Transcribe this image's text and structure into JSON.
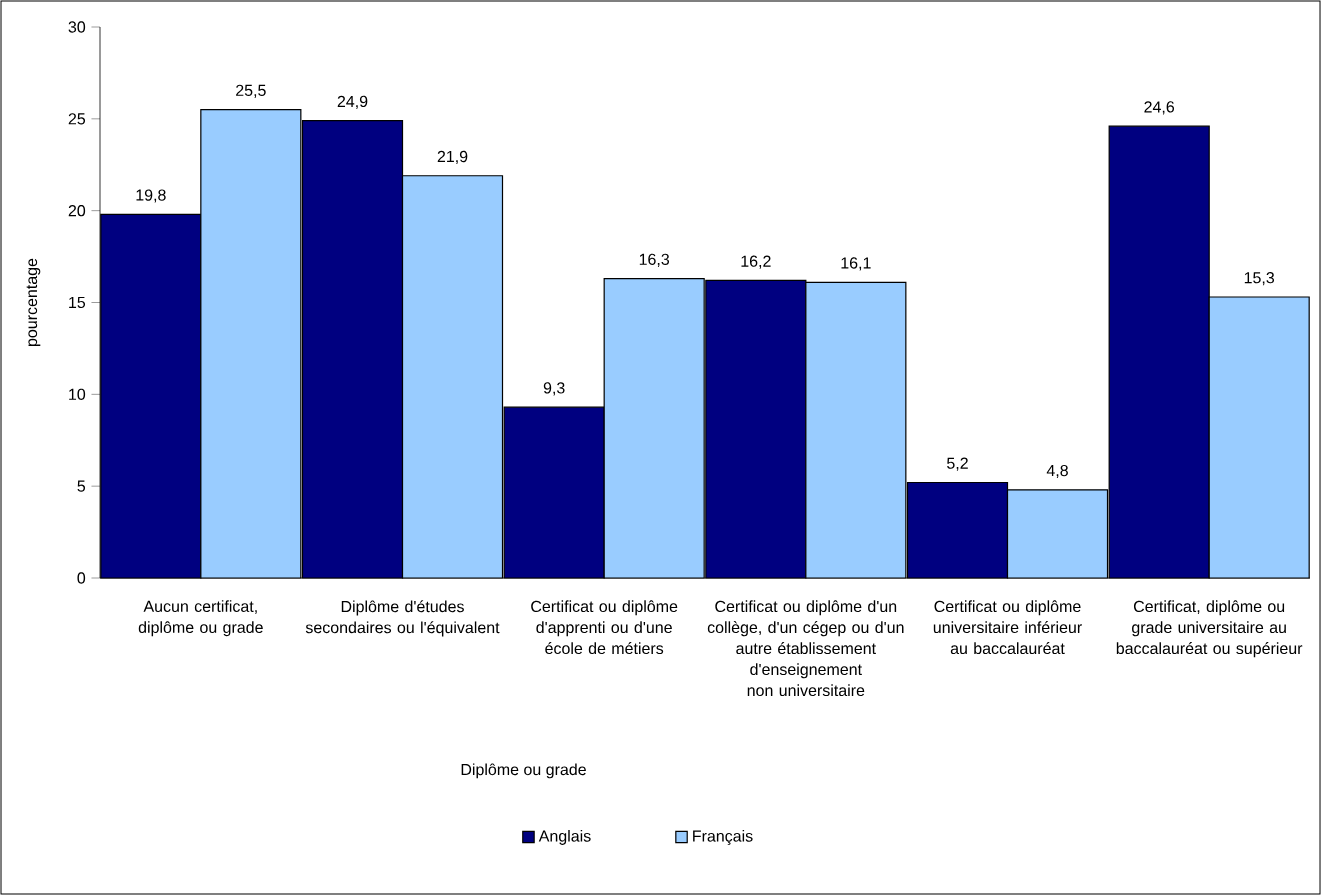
{
  "chart_data": {
    "type": "bar",
    "xlabel": "Diplôme ou grade",
    "ylabel": "pourcentage",
    "categories": [
      "Aucun certificat, diplôme ou grade",
      "Diplôme d'études secondaires ou l'équivalent",
      "Certificat ou diplôme d'apprenti ou d'une école de métiers",
      "Certificat ou diplôme d'un collège, d'un cégep ou d'un autre établissement d'enseignement non universitaire",
      "Certificat ou diplôme universitaire inférieur au baccalauréat",
      "Certificat, diplôme ou grade universitaire au baccalauréat ou supérieur"
    ],
    "series": [
      {
        "name": "Anglais",
        "color": "#000080",
        "values": [
          19.8,
          24.9,
          9.3,
          16.2,
          5.2,
          24.6
        ],
        "value_labels": [
          "19,8",
          "24,9",
          "9,3",
          "16,2",
          "5,2",
          "24,6"
        ]
      },
      {
        "name": "Français",
        "color": "#99ccff",
        "values": [
          25.5,
          21.9,
          16.3,
          16.1,
          4.8,
          15.3
        ],
        "value_labels": [
          "25,5",
          "21,9",
          "16,3",
          "16,1",
          "4,8",
          "15,3"
        ]
      }
    ],
    "ylim": [
      0,
      30
    ],
    "yticks": [
      0,
      5,
      10,
      15,
      20,
      25,
      30
    ],
    "grid": false,
    "legend": "bottom"
  }
}
